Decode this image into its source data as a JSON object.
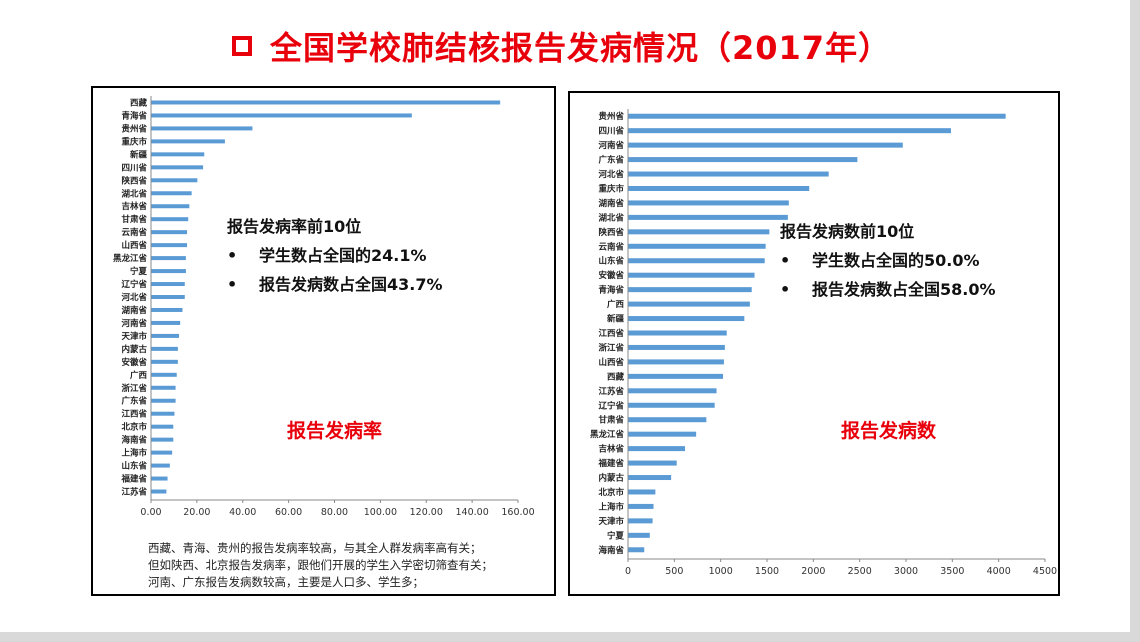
{
  "title": "全国学校肺结核报告发病情况（2017年）",
  "left_chart": {
    "heading": "报告发病率前10位",
    "bullets": [
      "学生数占全国的24.1%",
      "报告发病数占全国43.7%"
    ],
    "label": "报告发病率",
    "footnote": [
      "西藏、青海、贵州的报告发病率较高，与其全人群发病率高有关；",
      "但如陕西、北京报告发病率，跟他们开展的学生入学密切筛查有关；",
      "河南、广东报告发病数较高，主要是人口多、学生多；"
    ]
  },
  "right_chart": {
    "heading": "报告发病数前10位",
    "bullets": [
      "学生数占全国的50.0%",
      "报告发病数占全国58.0%"
    ],
    "label": "报告发病数"
  },
  "colors": {
    "bar": "#5b9bd5",
    "title": "#e8000b"
  },
  "chart_data": [
    {
      "type": "bar",
      "orientation": "horizontal",
      "categories": [
        "西藏",
        "青海省",
        "贵州省",
        "重庆市",
        "新疆",
        "四川省",
        "陕西省",
        "湖北省",
        "吉林省",
        "甘肃省",
        "云南省",
        "山西省",
        "黑龙江省",
        "宁夏",
        "辽宁省",
        "河北省",
        "湖南省",
        "河南省",
        "天津市",
        "内蒙古",
        "安徽省",
        "广西",
        "浙江省",
        "广东省",
        "江西省",
        "北京市",
        "海南省",
        "上海市",
        "山东省",
        "福建省",
        "江苏省"
      ],
      "values": [
        152.0,
        113.5,
        44.0,
        32.0,
        23.0,
        22.5,
        20.0,
        17.5,
        16.5,
        16.0,
        15.5,
        15.5,
        15.0,
        15.0,
        14.5,
        14.5,
        13.5,
        12.5,
        12.0,
        11.5,
        11.5,
        11.0,
        10.5,
        10.5,
        10.0,
        9.5,
        9.5,
        9.0,
        8.0,
        7.0,
        6.5
      ],
      "xlim": [
        0,
        160
      ],
      "xticks": [
        "0.00",
        "20.00",
        "40.00",
        "60.00",
        "80.00",
        "100.00",
        "120.00",
        "140.00",
        "160.00"
      ]
    },
    {
      "type": "bar",
      "orientation": "horizontal",
      "categories": [
        "贵州省",
        "四川省",
        "河南省",
        "广东省",
        "河北省",
        "重庆市",
        "湖南省",
        "湖北省",
        "陕西省",
        "云南省",
        "山东省",
        "安徽省",
        "青海省",
        "广西",
        "新疆",
        "江西省",
        "浙江省",
        "山西省",
        "西藏",
        "江苏省",
        "辽宁省",
        "甘肃省",
        "黑龙江省",
        "吉林省",
        "福建省",
        "内蒙古",
        "北京市",
        "上海市",
        "天津市",
        "宁夏",
        "海南省"
      ],
      "values": [
        4070,
        3480,
        2960,
        2470,
        2160,
        1950,
        1730,
        1720,
        1520,
        1480,
        1470,
        1360,
        1330,
        1310,
        1250,
        1060,
        1040,
        1030,
        1020,
        950,
        930,
        840,
        730,
        610,
        520,
        460,
        290,
        270,
        260,
        230,
        170
      ],
      "xlim": [
        0,
        4500
      ],
      "xticks": [
        "0",
        "500",
        "1000",
        "1500",
        "2000",
        "2500",
        "3000",
        "3500",
        "4000",
        "4500"
      ]
    }
  ]
}
